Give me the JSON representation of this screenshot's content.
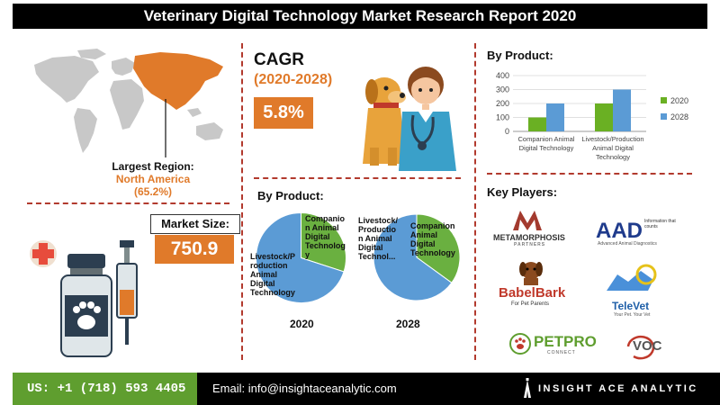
{
  "title": "Veterinary Digital Technology Market Research Report 2020",
  "region": {
    "label": "Largest Region:",
    "name": "North America",
    "share": "(65.2%)"
  },
  "market_size": {
    "label": "Market Size:",
    "value": "750.9"
  },
  "cagr": {
    "label": "CAGR",
    "period": "(2020-2028)",
    "value": "5.8%"
  },
  "pie_section": {
    "title": "By Product:",
    "year_left": "2020",
    "year_right": "2028"
  },
  "bar_section": {
    "title": "By Product:"
  },
  "key_players": {
    "title": "Key Players:",
    "names": [
      "METAMORPHOSIS",
      "PARTNERS",
      "Information that counts",
      "Advanced Animal Diagnostics",
      "BabelBark",
      "For Pet Parents",
      "TeleVet",
      "Your Pet. Your Vet",
      "PETPRO",
      "CONNECT",
      "VOC"
    ]
  },
  "footer": {
    "phone": "US: +1 (718) 593 4405",
    "email": "Email: info@insightaceanalytic.com",
    "brand": "INSIGHT ACE ANALYTIC"
  },
  "colors": {
    "orange": "#e07a2a",
    "green": "#6ab023",
    "blue": "#5b9bd5",
    "pie_green": "#6ab040",
    "pie_blue": "#5b9bd5",
    "divider": "#b23a2e"
  },
  "chart_data": [
    {
      "type": "bar",
      "categories": [
        "Companion Animal Digital Technology",
        "Livestock/Production Animal Digital Technology"
      ],
      "series": [
        {
          "name": "2020",
          "values": [
            100,
            200
          ]
        },
        {
          "name": "2028",
          "values": [
            200,
            300
          ]
        }
      ],
      "yticks": [
        "0",
        "100",
        "200",
        "300",
        "400"
      ],
      "ylim": [
        0,
        400
      ],
      "legend": "right"
    },
    {
      "type": "pie",
      "year": "2020",
      "labels": [
        "Companion Animal Digital Technology",
        "Livestock/Production Animal Digital Technology"
      ],
      "label_text": [
        "Companio n Animal Digital Technolog y",
        "Livestock/P roduction Animal Digital Technology"
      ],
      "values": [
        30,
        70
      ]
    },
    {
      "type": "pie",
      "year": "2028",
      "labels": [
        "Companion Animal Digital Technology",
        "Livestock/Production Animal Digital Technology"
      ],
      "label_text": [
        "Companion Animal Digital Technology",
        "Livestock/ Productio n Animal Digital Technol..."
      ],
      "values": [
        35,
        65
      ]
    }
  ]
}
